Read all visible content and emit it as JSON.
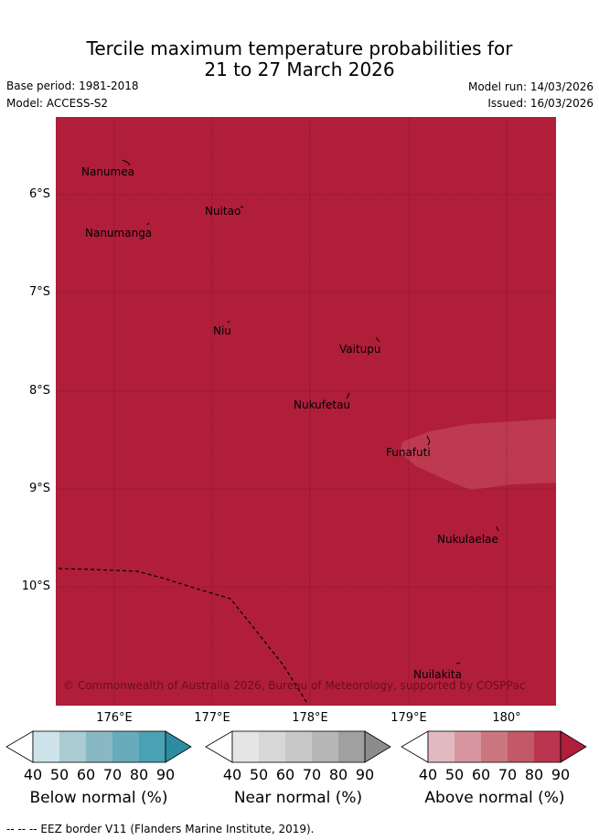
{
  "title_line1": "Tercile maximum temperature probabilities for",
  "title_line2": "21 to 27 March 2026",
  "base_period": "Base period: 1981-2018",
  "model": "Model: ACCESS-S2",
  "model_run": "Model run: 14/03/2026",
  "issued": "Issued: 16/03/2026",
  "latitude_labels": [
    "6°S",
    "7°S",
    "8°S",
    "9°S",
    "10°S"
  ],
  "longitude_labels": [
    "176°E",
    "177°E",
    "178°E",
    "179°E",
    "180°"
  ],
  "places": [
    {
      "name": "Nanumea"
    },
    {
      "name": "Nuitao"
    },
    {
      "name": "Nanumanga"
    },
    {
      "name": "Niu"
    },
    {
      "name": "Vaitupu"
    },
    {
      "name": "Nukufetau"
    },
    {
      "name": "Funafuti"
    },
    {
      "name": "Nukulaelae"
    },
    {
      "name": "Nuilakita"
    }
  ],
  "map_fill": {
    "above_normal_90_color": "#b01e3a",
    "above_normal_80_color": "#bd3a50"
  },
  "copyright": "© Commonwealth of Australia 2026, Bureau of Meteorology, supported by COSPPac",
  "colorbars": [
    {
      "title": "Below normal (%)",
      "ticks": [
        "40",
        "50",
        "60",
        "70",
        "80",
        "90"
      ],
      "colors": [
        "#cde3e9",
        "#aacbd2",
        "#88b8c4",
        "#68abbb",
        "#48a2b3",
        "#2c8da2"
      ]
    },
    {
      "title": "Near normal (%)",
      "ticks": [
        "40",
        "50",
        "60",
        "70",
        "80",
        "90"
      ],
      "colors": [
        "#e5e5e5",
        "#d7d7d7",
        "#c8c8c8",
        "#b6b6b6",
        "#a0a0a0",
        "#8c8c8c"
      ]
    },
    {
      "title": "Above normal (%)",
      "ticks": [
        "40",
        "50",
        "60",
        "70",
        "80",
        "90"
      ],
      "colors": [
        "#e2b9c0",
        "#d7969f",
        "#cc7780",
        "#c35966",
        "#bc3550",
        "#b01e3a"
      ]
    }
  ],
  "footer": "--  --  -- EEZ border V11 (Flanders Marine Institute, 2019)."
}
